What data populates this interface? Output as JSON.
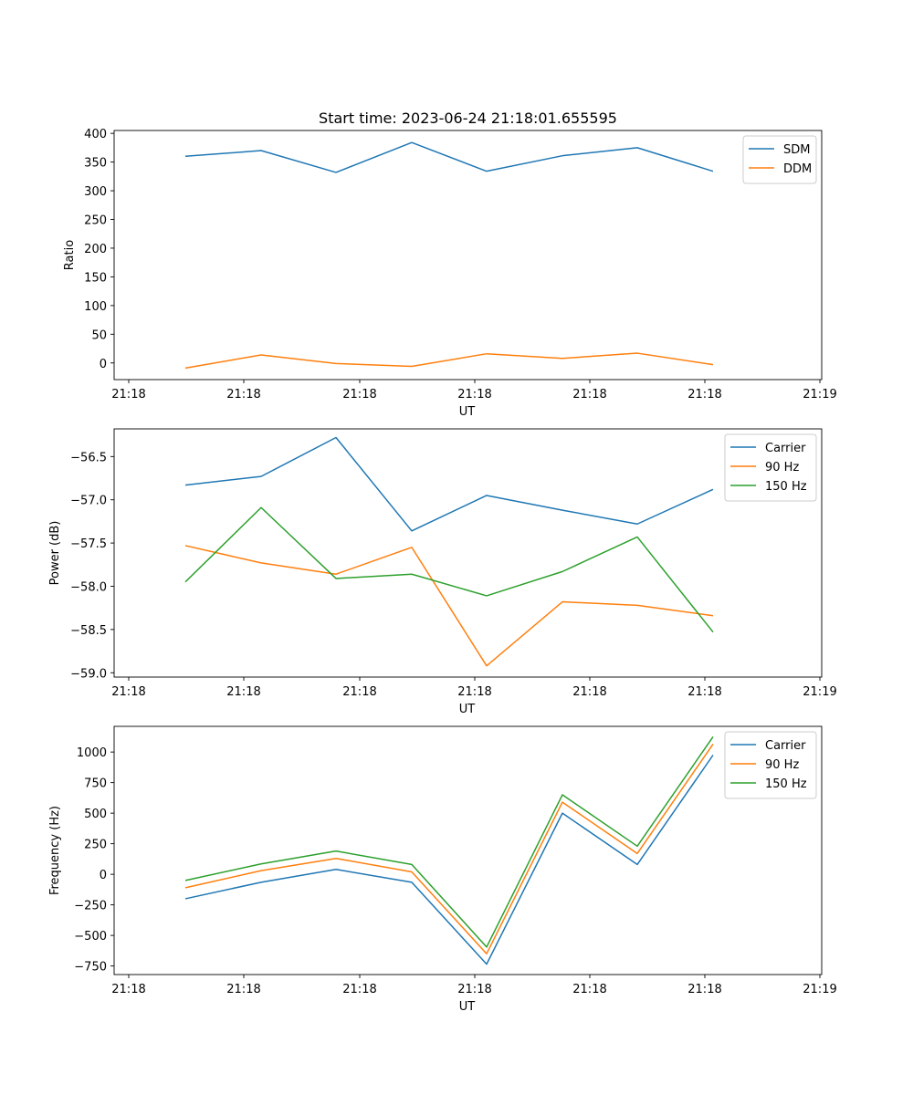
{
  "chart_data": [
    {
      "type": "line",
      "title": "Start time: 2023-06-24 21:18:01.655595",
      "xlabel": "UT",
      "ylabel": "Ratio",
      "x_tick_labels": [
        "21:18",
        "21:18",
        "21:18",
        "21:18",
        "21:18",
        "21:18",
        "21:18",
        "21:19"
      ],
      "ylim": [
        -29,
        405
      ],
      "y_ticks": [
        0,
        50,
        100,
        150,
        200,
        250,
        300,
        350,
        400
      ],
      "y_tick_labels": [
        "0",
        "50",
        "100",
        "150",
        "200",
        "250",
        "300",
        "350",
        "400"
      ],
      "legend_position": "top-right",
      "series": [
        {
          "name": "SDM",
          "color": "#1f77b4",
          "values": [
            360,
            370,
            332,
            384,
            334,
            361,
            375,
            334
          ]
        },
        {
          "name": "DDM",
          "color": "#ff7f0e",
          "values": [
            -9,
            14,
            -1,
            -6,
            16,
            8,
            17,
            -3
          ]
        }
      ]
    },
    {
      "type": "line",
      "title": "",
      "xlabel": "UT",
      "ylabel": "Power (dB)",
      "x_tick_labels": [
        "21:18",
        "21:18",
        "21:18",
        "21:18",
        "21:18",
        "21:18",
        "21:18",
        "21:19"
      ],
      "ylim": [
        -59.05,
        -56.18
      ],
      "y_ticks": [
        -56.5,
        -57.0,
        -57.5,
        -58.0,
        -58.5,
        -59.0
      ],
      "y_tick_labels": [
        "−56.5",
        "−57.0",
        "−57.5",
        "−58.0",
        "−58.5",
        "−59.0"
      ],
      "legend_position": "top-right",
      "series": [
        {
          "name": "Carrier",
          "color": "#1f77b4",
          "values": [
            -56.83,
            -56.73,
            -56.28,
            -57.36,
            -56.95,
            -57.12,
            -57.28,
            -56.88
          ]
        },
        {
          "name": "90 Hz",
          "color": "#ff7f0e",
          "values": [
            -57.53,
            -57.73,
            -57.86,
            -57.55,
            -58.92,
            -58.18,
            -58.22,
            -58.34
          ]
        },
        {
          "name": "150 Hz",
          "color": "#2ca02c",
          "values": [
            -57.95,
            -57.09,
            -57.91,
            -57.86,
            -58.11,
            -57.83,
            -57.43,
            -58.53
          ]
        }
      ]
    },
    {
      "type": "line",
      "title": "",
      "xlabel": "UT",
      "ylabel": "Frequency (Hz)",
      "x_tick_labels": [
        "21:18",
        "21:18",
        "21:18",
        "21:18",
        "21:18",
        "21:18",
        "21:18",
        "21:19"
      ],
      "ylim": [
        -820,
        1210
      ],
      "y_ticks": [
        1000,
        750,
        500,
        250,
        0,
        -250,
        -500,
        -750
      ],
      "y_tick_labels": [
        "1000",
        "750",
        "500",
        "250",
        "0",
        "−250",
        "−500",
        "−750"
      ],
      "legend_position": "top-right",
      "series": [
        {
          "name": "Carrier",
          "color": "#1f77b4",
          "values": [
            -200,
            -65,
            40,
            -65,
            -735,
            500,
            80,
            975
          ]
        },
        {
          "name": "90 Hz",
          "color": "#ff7f0e",
          "values": [
            -110,
            30,
            130,
            20,
            -650,
            590,
            170,
            1065
          ]
        },
        {
          "name": "150 Hz",
          "color": "#2ca02c",
          "values": [
            -50,
            85,
            190,
            80,
            -595,
            650,
            230,
            1125
          ]
        }
      ]
    }
  ]
}
